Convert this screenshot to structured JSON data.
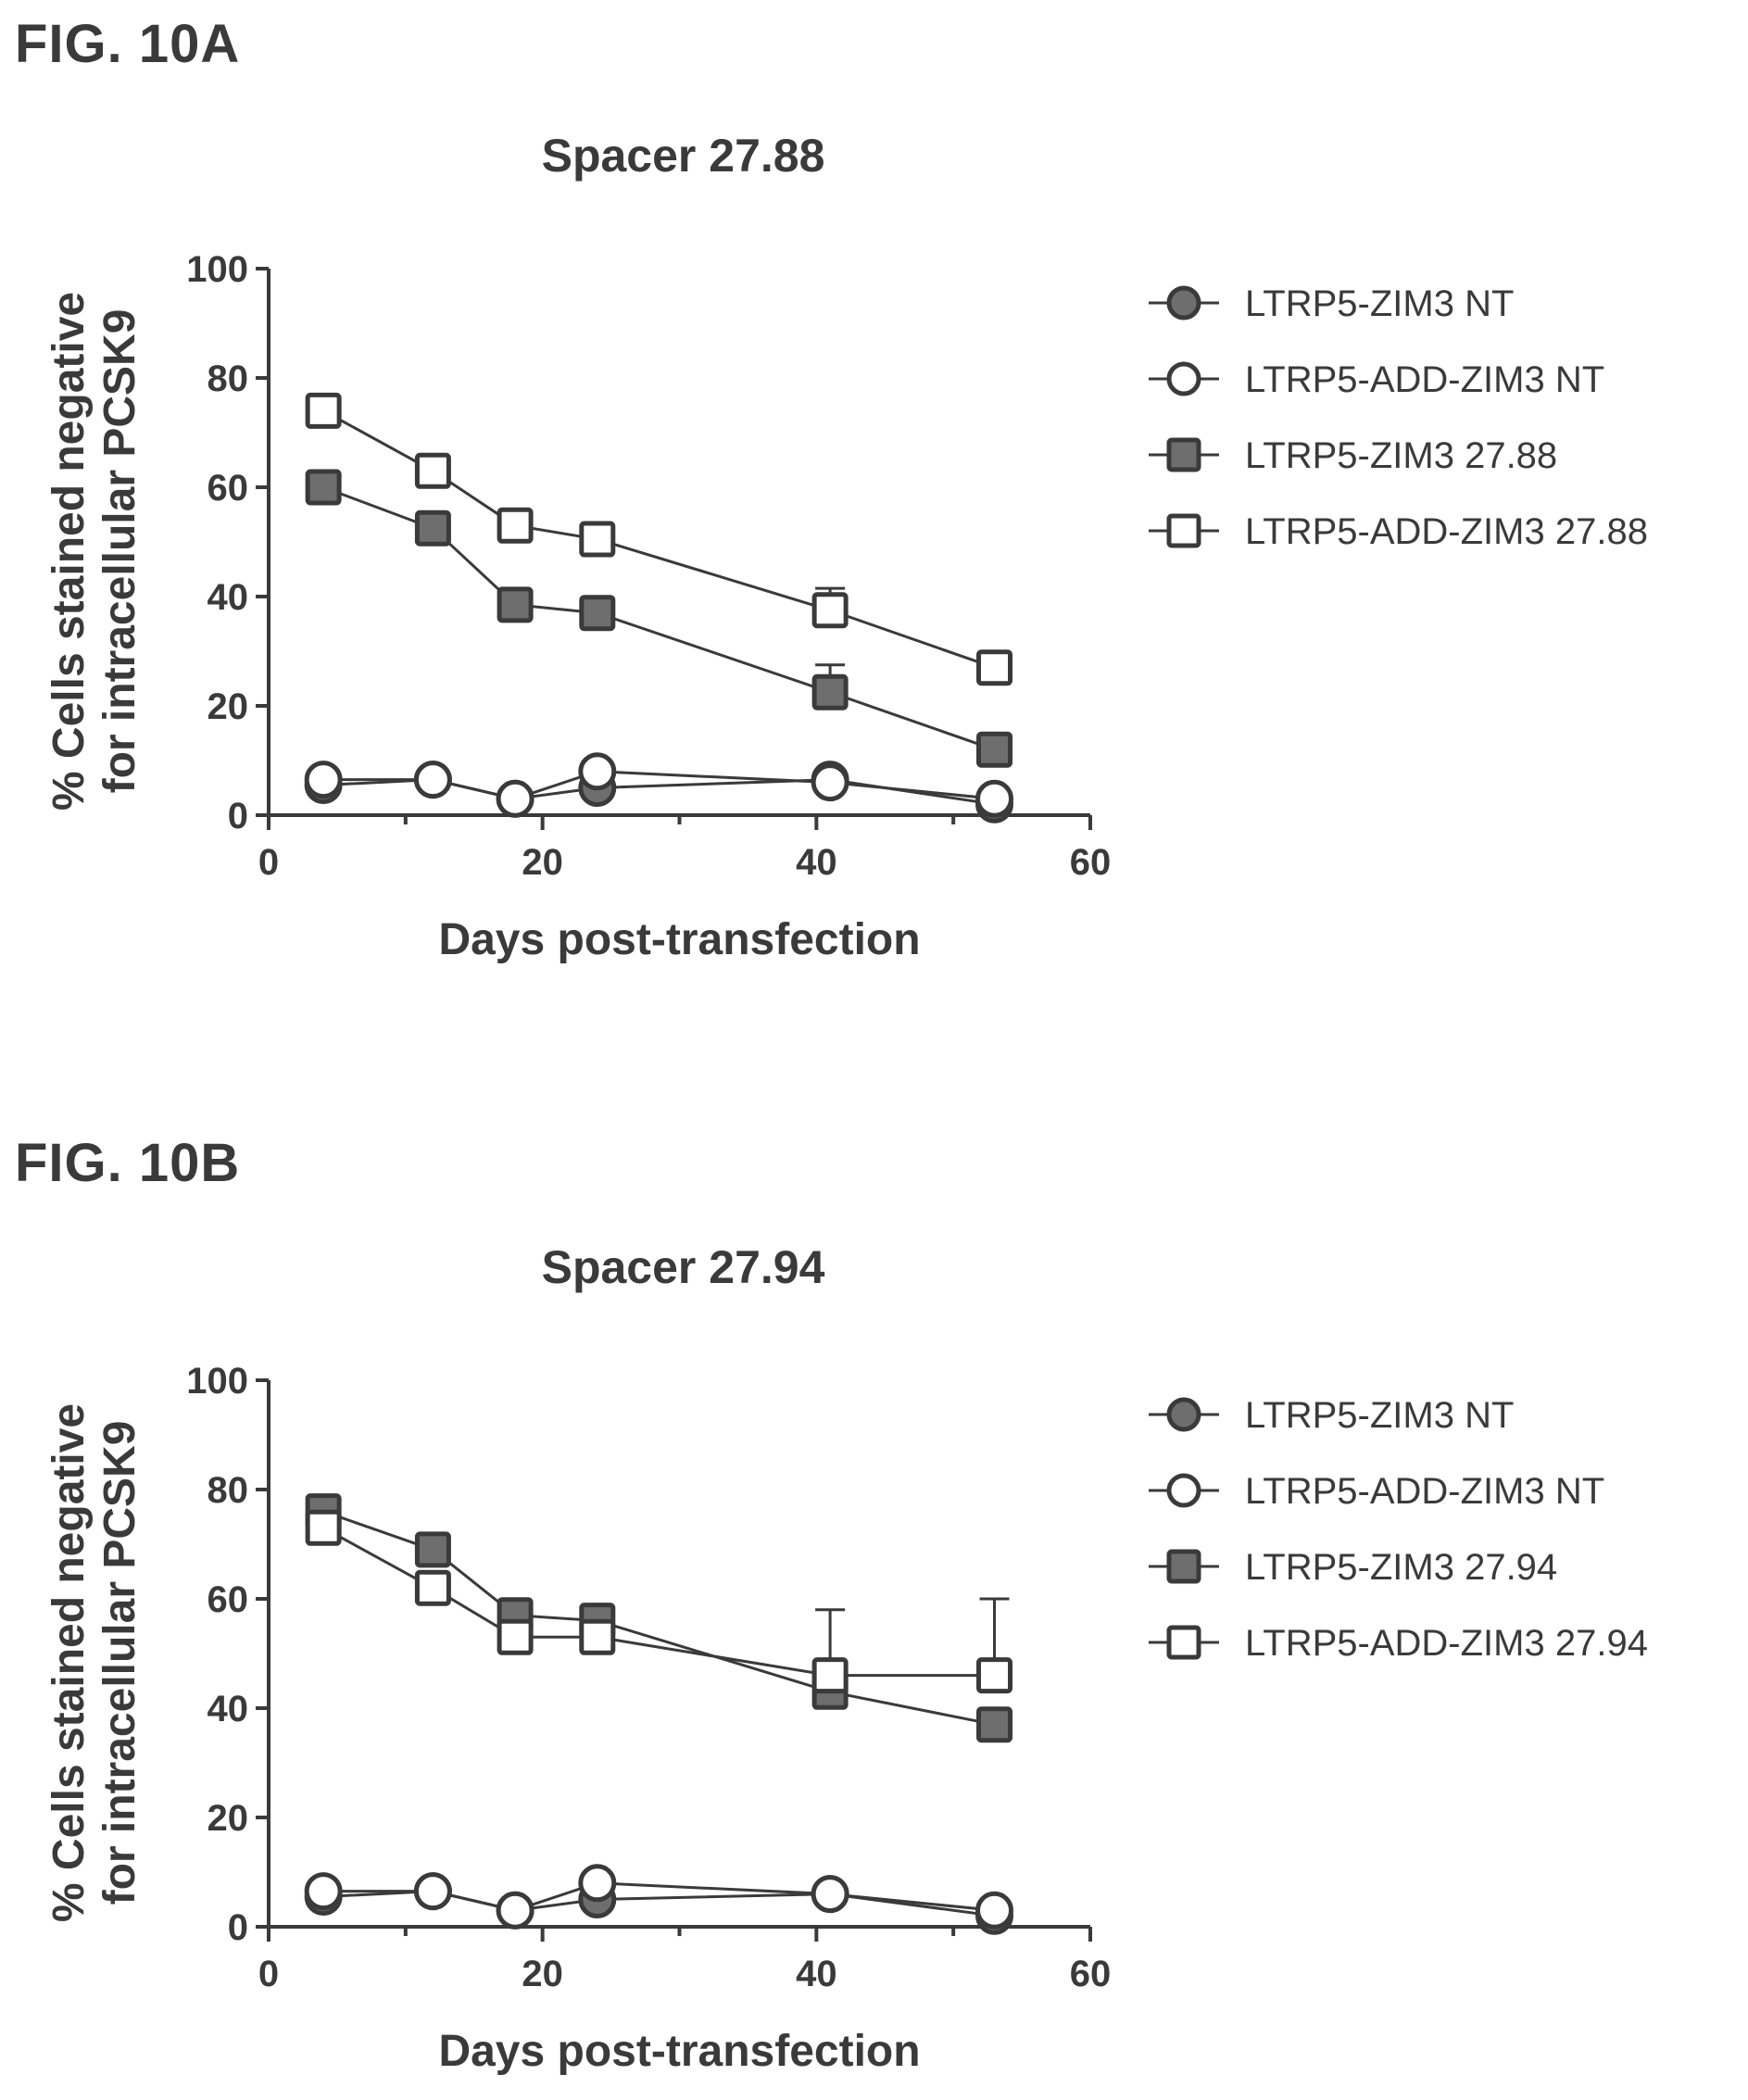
{
  "figures": [
    {
      "label": "FIG. 10A",
      "chart_data": {
        "type": "line",
        "title": "Spacer 27.88",
        "xlabel": "Days post-transfection",
        "ylabel_lines": [
          "% Cells stained negative",
          "for intracellular  PCSK9"
        ],
        "xlim": [
          0,
          60
        ],
        "ylim": [
          0,
          100
        ],
        "xticks": [
          0,
          20,
          40,
          60
        ],
        "xticks_minor": [
          10,
          30,
          50
        ],
        "yticks": [
          0,
          20,
          40,
          60,
          80,
          100
        ],
        "grid": false,
        "legend_position": "right",
        "series": [
          {
            "name": "LTRP5-ZIM3 NT",
            "marker": "circle",
            "fill": "#6e6e6e",
            "x": [
              4,
              12,
              18,
              24,
              41,
              53
            ],
            "y": [
              5.5,
              6.5,
              3,
              5,
              6.5,
              2
            ],
            "err": [
              0,
              0,
              0,
              0,
              0,
              0
            ]
          },
          {
            "name": "LTRP5-ADD-ZIM3 NT",
            "marker": "circle",
            "fill": "#ffffff",
            "x": [
              4,
              12,
              18,
              24,
              41,
              53
            ],
            "y": [
              6.5,
              6.5,
              3,
              8,
              6,
              3
            ],
            "err": [
              0,
              0,
              0,
              0,
              0,
              0
            ]
          },
          {
            "name": "LTRP5-ZIM3 27.88",
            "marker": "square",
            "fill": "#6e6e6e",
            "x": [
              4,
              12,
              18,
              24,
              41,
              53
            ],
            "y": [
              60,
              52.5,
              38.5,
              37,
              22.5,
              12
            ],
            "err": [
              0,
              0,
              0,
              0,
              5,
              0
            ]
          },
          {
            "name": "LTRP5-ADD-ZIM3 27.88",
            "marker": "square",
            "fill": "#ffffff",
            "x": [
              4,
              12,
              18,
              24,
              41,
              53
            ],
            "y": [
              74,
              63,
              53,
              50.5,
              37.5,
              27
            ],
            "err": [
              0,
              0,
              0,
              0,
              4,
              0
            ]
          }
        ]
      }
    },
    {
      "label": "FIG. 10B",
      "chart_data": {
        "type": "line",
        "title": "Spacer 27.94",
        "xlabel": "Days post-transfection",
        "ylabel_lines": [
          "% Cells stained negative",
          "for intracellular  PCSK9"
        ],
        "xlim": [
          0,
          60
        ],
        "ylim": [
          0,
          100
        ],
        "xticks": [
          0,
          20,
          40,
          60
        ],
        "xticks_minor": [
          10,
          30,
          50
        ],
        "yticks": [
          0,
          20,
          40,
          60,
          80,
          100
        ],
        "grid": false,
        "legend_position": "right",
        "series": [
          {
            "name": "LTRP5-ZIM3 NT",
            "marker": "circle",
            "fill": "#6e6e6e",
            "x": [
              4,
              12,
              18,
              24,
              41,
              53
            ],
            "y": [
              5.5,
              6.5,
              3,
              5,
              6,
              2
            ],
            "err": [
              0,
              0,
              0,
              0,
              0,
              0
            ]
          },
          {
            "name": "LTRP5-ADD-ZIM3 NT",
            "marker": "circle",
            "fill": "#ffffff",
            "x": [
              4,
              12,
              18,
              24,
              41,
              53
            ],
            "y": [
              6.5,
              6.5,
              3,
              8,
              6,
              3
            ],
            "err": [
              0,
              0,
              0,
              0,
              0,
              0
            ]
          },
          {
            "name": "LTRP5-ZIM3 27.94",
            "marker": "square",
            "fill": "#6e6e6e",
            "x": [
              4,
              12,
              18,
              24,
              41,
              53
            ],
            "y": [
              76,
              69,
              57,
              56,
              43,
              37
            ],
            "err": [
              0,
              0,
              0,
              0,
              0,
              0
            ]
          },
          {
            "name": "LTRP5-ADD-ZIM3 27.94",
            "marker": "square",
            "fill": "#ffffff",
            "x": [
              4,
              12,
              18,
              24,
              41,
              53
            ],
            "y": [
              73,
              62,
              53,
              53,
              46,
              46
            ],
            "err": [
              0,
              0,
              0,
              0,
              12,
              14
            ]
          }
        ]
      }
    }
  ]
}
